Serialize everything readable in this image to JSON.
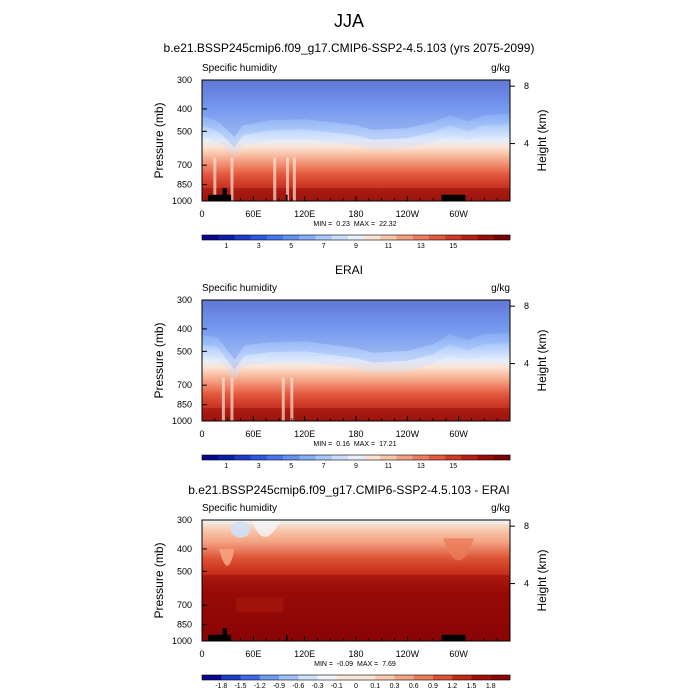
{
  "figure": {
    "title": "JJA"
  },
  "palettes": {
    "humidity": [
      "#08088c",
      "#0a1ea8",
      "#1e3cc8",
      "#2e58e0",
      "#4676ec",
      "#6492f2",
      "#86aef6",
      "#a8c8fa",
      "#cadefc",
      "#e8eefa",
      "#fbe3d3",
      "#f8c4aa",
      "#f4a183",
      "#ee7d60",
      "#e25a40",
      "#d03a25",
      "#b81f14",
      "#990c08",
      "#7a0404"
    ],
    "difference": [
      "#08088c",
      "#1e3cc8",
      "#3f68e8",
      "#6f9af2",
      "#a0c0f8",
      "#cfe2fa",
      "#f2f5fa",
      "#fbe6d6",
      "#f8c9ad",
      "#f4a383",
      "#eb7c5a",
      "#dc5234",
      "#c42b16",
      "#a3100a",
      "#8a0505"
    ]
  },
  "chart_data": [
    {
      "type": "contour",
      "name": "model",
      "title": "b.e21.BSSP245cmip6.f09_g17.CMIP6-SSP2-4.5.103 (yrs 2075-2099)",
      "variable": "Specific humidity",
      "units": "g/kg",
      "ylabel": "Pressure (mb)",
      "y2label": "Height (km)",
      "xticks": [
        "0",
        "60E",
        "120E",
        "180",
        "120W",
        "60W"
      ],
      "xtick_lon": [
        0,
        60,
        120,
        180,
        240,
        300
      ],
      "xlim": [
        0,
        360
      ],
      "yticks": [
        "300",
        "400",
        "500",
        "700",
        "850",
        "1000"
      ],
      "ytick_p": [
        300,
        400,
        500,
        700,
        850,
        1000
      ],
      "ylim": [
        1000,
        300
      ],
      "y2ticks": [
        "8",
        "4"
      ],
      "y2tick_km": [
        8,
        4
      ],
      "min_label": "MIN =",
      "min_value": "0.23",
      "max_label": "MAX =",
      "max_value": "22.32",
      "colorbar_labels": [
        "1",
        "3",
        "5",
        "7",
        "9",
        "11",
        "13",
        "15"
      ],
      "colorbar_palette": "humidity",
      "ridges": [
        [
          0,
          470
        ],
        [
          20,
          505
        ],
        [
          38,
          585
        ],
        [
          48,
          520
        ],
        [
          80,
          495
        ],
        [
          120,
          490
        ],
        [
          180,
          520
        ],
        [
          200,
          545
        ],
        [
          240,
          535
        ],
        [
          270,
          505
        ],
        [
          290,
          470
        ],
        [
          310,
          500
        ],
        [
          330,
          470
        ],
        [
          360,
          465
        ]
      ],
      "spike_lon": [
        15,
        35,
        85,
        100,
        108
      ],
      "terrain": [
        [
          7,
          24,
          940
        ],
        [
          24,
          29,
          880
        ],
        [
          29,
          34,
          940
        ],
        [
          98,
          100,
          940
        ],
        [
          280,
          308,
          940
        ]
      ]
    },
    {
      "type": "contour",
      "name": "reanalysis",
      "title": "ERAI",
      "variable": "Specific humidity",
      "units": "g/kg",
      "ylabel": "Pressure (mb)",
      "y2label": "Height (km)",
      "xticks": [
        "0",
        "60E",
        "120E",
        "180",
        "120W",
        "60W"
      ],
      "xtick_lon": [
        0,
        60,
        120,
        180,
        240,
        300
      ],
      "xlim": [
        0,
        360
      ],
      "yticks": [
        "300",
        "400",
        "500",
        "700",
        "850",
        "1000"
      ],
      "ytick_p": [
        300,
        400,
        500,
        700,
        850,
        1000
      ],
      "ylim": [
        1000,
        300
      ],
      "y2ticks": [
        "8",
        "4"
      ],
      "y2tick_km": [
        8,
        4
      ],
      "min_label": "MIN =",
      "min_value": "0.16",
      "max_label": "MAX =",
      "max_value": "17.21",
      "colorbar_labels": [
        "1",
        "3",
        "5",
        "7",
        "9",
        "11",
        "13",
        "15"
      ],
      "colorbar_palette": "humidity",
      "ridges": [
        [
          0,
          470
        ],
        [
          18,
          480
        ],
        [
          38,
          600
        ],
        [
          50,
          520
        ],
        [
          80,
          505
        ],
        [
          120,
          500
        ],
        [
          180,
          535
        ],
        [
          200,
          560
        ],
        [
          240,
          550
        ],
        [
          270,
          515
        ],
        [
          290,
          465
        ],
        [
          310,
          495
        ],
        [
          330,
          465
        ],
        [
          360,
          460
        ]
      ],
      "spike_lon": [
        25,
        35,
        95,
        105
      ],
      "terrain": []
    },
    {
      "type": "contour",
      "name": "difference",
      "title": "b.e21.BSSP245cmip6.f09_g17.CMIP6-SSP2-4.5.103 - ERAI",
      "variable": "Specific humidity",
      "units": "g/kg",
      "ylabel": "Pressure (mb)",
      "y2label": "Height (km)",
      "xticks": [
        "0",
        "60E",
        "120E",
        "180",
        "120W",
        "60W"
      ],
      "xtick_lon": [
        0,
        60,
        120,
        180,
        240,
        300
      ],
      "xlim": [
        0,
        360
      ],
      "yticks": [
        "300",
        "400",
        "500",
        "700",
        "850",
        "1000"
      ],
      "ytick_p": [
        300,
        400,
        500,
        700,
        850,
        1000
      ],
      "ylim": [
        1000,
        300
      ],
      "y2ticks": [
        "8",
        "4"
      ],
      "y2tick_km": [
        8,
        4
      ],
      "min_label": "MIN =",
      "min_value": "-0.09",
      "max_label": "MAX =",
      "max_value": "7.69",
      "colorbar_labels": [
        "-1.8",
        "-1.5",
        "-1.2",
        "-0.9",
        "-0.6",
        "-0.3",
        "-0.1",
        "0",
        "0.1",
        "0.3",
        "0.6",
        "0.9",
        "1.2",
        "1.5",
        "1.8"
      ],
      "colorbar_palette": "difference",
      "terrain": [
        [
          7,
          24,
          940
        ],
        [
          24,
          29,
          880
        ],
        [
          29,
          34,
          940
        ],
        [
          98,
          100,
          940
        ],
        [
          280,
          308,
          940
        ]
      ]
    }
  ]
}
